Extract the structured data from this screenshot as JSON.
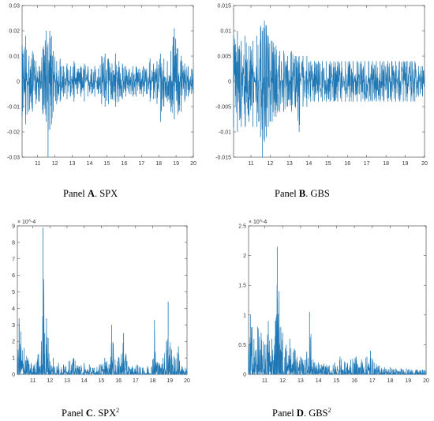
{
  "chart_data": [
    {
      "type": "line",
      "panel": "A",
      "caption_prefix": "Panel ",
      "caption_letter": "A",
      "caption_name": ". SPX",
      "caption_sup": "",
      "x_ticks": [
        "11",
        "12",
        "13",
        "14",
        "15",
        "16",
        "17",
        "18",
        "19",
        "20"
      ],
      "y_ticks": [
        "0.03",
        "0.02",
        "0.01",
        "0",
        "-0.01",
        "-0.02",
        "-0.03"
      ],
      "y_tick_values": [
        0.03,
        0.02,
        0.01,
        0,
        -0.01,
        -0.02,
        -0.03
      ],
      "xlim": [
        10.1,
        20
      ],
      "ylim": [
        -0.03,
        0.03
      ],
      "exponent_label": "",
      "color": "#1f77b4",
      "series": [
        {
          "x": [
            10.1,
            10.3,
            10.5,
            10.7,
            10.9,
            11.1,
            11.3,
            11.5,
            11.6,
            11.7,
            11.8,
            11.9,
            12.1,
            12.3,
            12.5,
            12.7,
            12.9,
            13.1,
            13.3,
            13.5,
            13.7,
            13.9,
            14.1,
            14.3,
            14.5,
            14.7,
            14.9,
            15.1,
            15.3,
            15.5,
            15.7,
            15.9,
            16.1,
            16.3,
            16.5,
            16.7,
            16.9,
            17.1,
            17.3,
            17.5,
            17.7,
            17.9,
            18.1,
            18.3,
            18.5,
            18.7,
            18.9,
            19.1,
            19.3,
            19.5,
            19.7,
            19.9
          ],
          "y_high": [
            0.014,
            0.018,
            0.01,
            0.012,
            0.008,
            0.006,
            0.013,
            0.02,
            0.015,
            0.02,
            0.018,
            0.012,
            0.008,
            0.009,
            0.006,
            0.007,
            0.006,
            0.008,
            0.005,
            0.006,
            0.007,
            0.006,
            0.005,
            0.006,
            0.005,
            0.01,
            0.011,
            0.009,
            0.007,
            0.011,
            0.008,
            0.007,
            0.006,
            0.005,
            0.006,
            0.006,
            0.005,
            0.006,
            0.005,
            0.009,
            0.007,
            0.008,
            0.011,
            0.009,
            0.008,
            0.012,
            0.021,
            0.013,
            0.01,
            0.007,
            0.006,
            0.005
          ],
          "y_low": [
            -0.014,
            -0.017,
            -0.012,
            -0.012,
            -0.009,
            -0.008,
            -0.013,
            -0.016,
            -0.03,
            -0.019,
            -0.017,
            -0.012,
            -0.009,
            -0.008,
            -0.006,
            -0.007,
            -0.006,
            -0.008,
            -0.005,
            -0.006,
            -0.008,
            -0.006,
            -0.005,
            -0.006,
            -0.005,
            -0.009,
            -0.01,
            -0.009,
            -0.007,
            -0.01,
            -0.008,
            -0.007,
            -0.006,
            -0.005,
            -0.006,
            -0.006,
            -0.005,
            -0.006,
            -0.005,
            -0.008,
            -0.007,
            -0.009,
            -0.016,
            -0.01,
            -0.008,
            -0.012,
            -0.015,
            -0.013,
            -0.012,
            -0.008,
            -0.006,
            -0.005
          ]
        }
      ]
    },
    {
      "type": "line",
      "panel": "B",
      "caption_prefix": "Panel ",
      "caption_letter": "B",
      "caption_name": ". GBS",
      "caption_sup": "",
      "x_ticks": [
        "11",
        "12",
        "13",
        "14",
        "15",
        "16",
        "17",
        "18",
        "19",
        "20"
      ],
      "y_ticks": [
        "0.015",
        "0.01",
        "0.005",
        "0",
        "-0.005",
        "-0.01",
        "-0.015"
      ],
      "y_tick_values": [
        0.015,
        0.01,
        0.005,
        0,
        -0.005,
        -0.01,
        -0.015
      ],
      "xlim": [
        10.1,
        20
      ],
      "ylim": [
        -0.015,
        0.015
      ],
      "exponent_label": "",
      "color": "#1f77b4",
      "series": [
        {
          "x": [
            10.1,
            10.3,
            10.5,
            10.7,
            10.9,
            11.1,
            11.3,
            11.5,
            11.6,
            11.7,
            11.8,
            11.9,
            12.1,
            12.3,
            12.5,
            12.7,
            12.9,
            13.1,
            13.3,
            13.5,
            13.7,
            13.9,
            14.1,
            14.3,
            14.5,
            14.7,
            14.9,
            15.1,
            15.3,
            15.5,
            15.7,
            15.9,
            16.1,
            16.3,
            16.5,
            16.7,
            16.9,
            17.1,
            17.3,
            17.5,
            17.7,
            17.9,
            18.1,
            18.3,
            18.5,
            18.7,
            18.9,
            19.1,
            19.3,
            19.5,
            19.7,
            19.9
          ],
          "y_high": [
            0.009,
            0.01,
            0.008,
            0.009,
            0.007,
            0.008,
            0.009,
            0.011,
            0.01,
            0.012,
            0.011,
            0.009,
            0.008,
            0.007,
            0.006,
            0.006,
            0.005,
            0.006,
            0.005,
            0.005,
            0.005,
            0.005,
            0.004,
            0.004,
            0.004,
            0.004,
            0.004,
            0.004,
            0.004,
            0.004,
            0.004,
            0.004,
            0.004,
            0.004,
            0.004,
            0.004,
            0.004,
            0.004,
            0.004,
            0.004,
            0.004,
            0.004,
            0.004,
            0.004,
            0.004,
            0.004,
            0.004,
            0.004,
            0.004,
            0.004,
            0.003,
            0.003
          ],
          "y_low": [
            -0.009,
            -0.01,
            -0.009,
            -0.009,
            -0.008,
            -0.009,
            -0.009,
            -0.011,
            -0.015,
            -0.012,
            -0.011,
            -0.009,
            -0.008,
            -0.007,
            -0.006,
            -0.006,
            -0.005,
            -0.006,
            -0.005,
            -0.01,
            -0.005,
            -0.005,
            -0.004,
            -0.004,
            -0.004,
            -0.004,
            -0.004,
            -0.004,
            -0.004,
            -0.004,
            -0.004,
            -0.004,
            -0.004,
            -0.004,
            -0.004,
            -0.004,
            -0.004,
            -0.004,
            -0.004,
            -0.004,
            -0.004,
            -0.004,
            -0.004,
            -0.004,
            -0.004,
            -0.004,
            -0.004,
            -0.004,
            -0.004,
            -0.004,
            -0.003,
            -0.003
          ]
        }
      ]
    },
    {
      "type": "line",
      "panel": "C",
      "caption_prefix": "Panel ",
      "caption_letter": "C",
      "caption_name": ". SPX",
      "caption_sup": "2",
      "x_ticks": [
        "11",
        "12",
        "13",
        "14",
        "15",
        "16",
        "17",
        "18",
        "19",
        "20"
      ],
      "y_ticks": [
        "9",
        "8",
        "7",
        "6",
        "5",
        "4",
        "3",
        "2",
        "1",
        "0"
      ],
      "y_tick_values": [
        9,
        8,
        7,
        6,
        5,
        4,
        3,
        2,
        1,
        0
      ],
      "xlim": [
        10.1,
        20
      ],
      "ylim": [
        0,
        9
      ],
      "exponent_label": "× 10^-4",
      "color": "#1f77b4",
      "series": [
        {
          "x": [
            10.1,
            10.2,
            10.3,
            10.5,
            10.7,
            10.9,
            11.1,
            11.3,
            11.5,
            11.55,
            11.6,
            11.7,
            11.8,
            11.9,
            12.0,
            12.2,
            12.5,
            12.8,
            13.1,
            13.4,
            13.7,
            14.0,
            14.3,
            14.6,
            14.9,
            15.2,
            15.5,
            15.6,
            15.8,
            16.0,
            16.3,
            16.5,
            16.8,
            17.1,
            17.4,
            17.7,
            18.0,
            18.1,
            18.3,
            18.6,
            18.8,
            18.9,
            19.1,
            19.3,
            19.5,
            19.7,
            19.9
          ],
          "y": [
            1.0,
            3.4,
            2.6,
            1.6,
            1.0,
            0.7,
            0.6,
            1.2,
            2.0,
            0.6,
            8.9,
            2.5,
            3.4,
            2.2,
            0.8,
            1.0,
            0.7,
            0.6,
            0.8,
            1.0,
            0.5,
            0.7,
            0.6,
            0.4,
            0.6,
            1.0,
            0.6,
            3.0,
            0.9,
            1.0,
            2.5,
            0.8,
            0.5,
            0.6,
            0.4,
            0.5,
            0.9,
            3.3,
            0.7,
            1.0,
            2.0,
            4.4,
            1.5,
            1.0,
            1.7,
            0.5,
            0.4
          ]
        }
      ]
    },
    {
      "type": "line",
      "panel": "D",
      "caption_prefix": "Panel ",
      "caption_letter": "D",
      "caption_name": ". GBS",
      "caption_sup": "2",
      "x_ticks": [
        "11",
        "12",
        "13",
        "14",
        "15",
        "16",
        "17",
        "18",
        "19",
        "20"
      ],
      "y_ticks": [
        "2.5",
        "2",
        "1.5",
        "1",
        "0.5",
        "0"
      ],
      "y_tick_values": [
        2.5,
        2,
        1.5,
        1,
        0.5,
        0
      ],
      "xlim": [
        10.1,
        20
      ],
      "ylim": [
        0,
        2.5
      ],
      "exponent_label": "× 10^-4",
      "color": "#1f77b4",
      "series": [
        {
          "x": [
            10.1,
            10.2,
            10.3,
            10.4,
            10.6,
            10.8,
            11.0,
            11.2,
            11.4,
            11.6,
            11.7,
            11.8,
            11.9,
            12.0,
            12.2,
            12.4,
            12.7,
            13.0,
            13.3,
            13.5,
            13.7,
            14.0,
            14.3,
            14.6,
            14.9,
            15.2,
            15.5,
            15.8,
            16.1,
            16.4,
            16.7,
            16.9,
            17.1,
            17.4,
            17.7,
            18.0,
            18.3,
            18.6,
            18.9,
            19.2,
            19.5,
            19.8
          ],
          "y": [
            0.4,
            1.0,
            0.8,
            0.6,
            0.8,
            0.7,
            0.5,
            0.9,
            0.6,
            0.9,
            2.15,
            1.4,
            0.8,
            0.7,
            0.5,
            0.6,
            0.4,
            0.3,
            0.25,
            1.05,
            0.25,
            0.2,
            0.18,
            0.15,
            0.2,
            0.3,
            0.2,
            0.25,
            0.3,
            0.25,
            0.3,
            0.4,
            0.2,
            0.15,
            0.12,
            0.12,
            0.1,
            0.1,
            0.1,
            0.08,
            0.08,
            0.08
          ]
        }
      ]
    }
  ]
}
